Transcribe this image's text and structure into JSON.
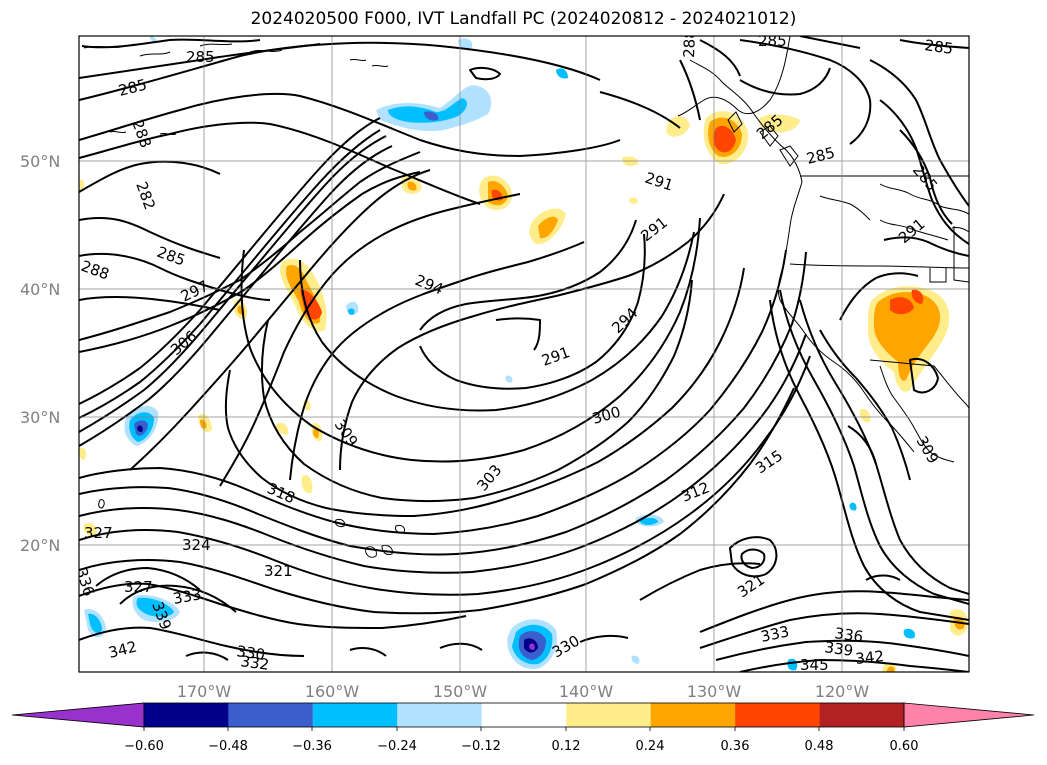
{
  "title": "2024020500 F000, IVT Landfall PC (2024020812 - 2024021012)",
  "lat_labels": [
    "50°N",
    "40°N",
    "30°N",
    "20°N"
  ],
  "lon_labels": [
    "170°W",
    "160°W",
    "150°W",
    "140°W",
    "130°W",
    "120°W"
  ],
  "contour_labels": [
    "285",
    "285",
    "285",
    "288",
    "288",
    "282",
    "285",
    "288",
    "297",
    "306",
    "294",
    "291",
    "291",
    "294",
    "291",
    "300",
    "303",
    "309",
    "312",
    "315",
    "318",
    "324",
    "321",
    "327",
    "327",
    "336",
    "333",
    "339",
    "342",
    "330",
    "332",
    "330",
    "321",
    "333",
    "336",
    "339",
    "342",
    "345",
    "309",
    "291",
    "285",
    "285",
    "285",
    "285"
  ],
  "colorbar": {
    "ticks": [
      "−0.60",
      "−0.48",
      "−0.36",
      "−0.24",
      "−0.12",
      "0.12",
      "0.24",
      "0.36",
      "0.48",
      "0.60"
    ],
    "colors": [
      "#9932cc",
      "#00008b",
      "#3a5fcd",
      "#00bfff",
      "#b0e2ff",
      "#ffffff",
      "#ffec8b",
      "#ffa500",
      "#ff4500",
      "#b22222",
      "#ff82ab"
    ],
    "extend": "both"
  }
}
